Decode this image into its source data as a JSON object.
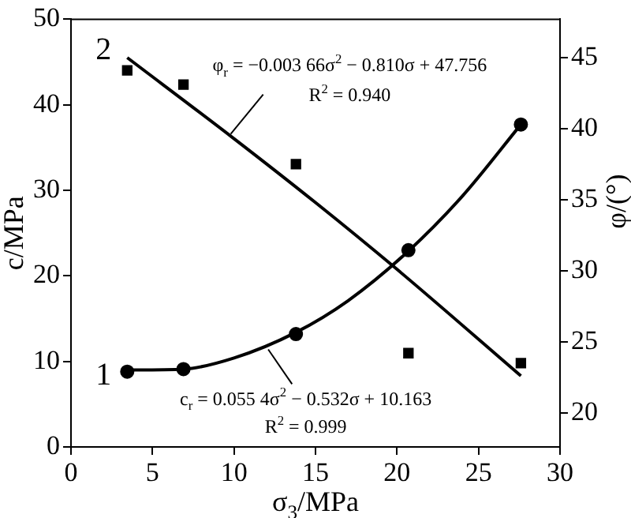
{
  "chart_data": {
    "type": "scatter",
    "xlabel": "σ$_{3}$/MPa",
    "ylabel": "c/MPa",
    "y2label": "φ/(°)",
    "xlim": [
      0,
      30
    ],
    "xticks": [
      0,
      5,
      10,
      15,
      20,
      25,
      30
    ],
    "ylim": [
      0,
      50
    ],
    "yticks": [
      0,
      10,
      20,
      30,
      40,
      50
    ],
    "y2lim": [
      17.6,
      47.7
    ],
    "y2ticks": [
      20,
      25,
      30,
      35,
      40,
      45
    ],
    "grid": false,
    "legend": false,
    "series": [
      {
        "type": "scatter",
        "marker": "circle",
        "color": "#000000",
        "x": [
          3.45,
          6.9,
          13.8,
          20.7,
          27.6
        ],
        "values": [
          8.8,
          9.1,
          13.2,
          23.0,
          37.7
        ]
      },
      {
        "name": "1",
        "type": "line",
        "marker": "none",
        "color": "#000000",
        "x": [
          3.45,
          6.9,
          10,
          13.8,
          17,
          20.7,
          24,
          27.6
        ],
        "values": [
          9.0,
          9.1,
          10.4,
          13.4,
          17.1,
          22.9,
          29.3,
          37.7
        ]
      },
      {
        "type": "scatter",
        "marker": "square",
        "axis": "y2",
        "color": "#000000",
        "x": [
          3.45,
          6.9,
          13.8,
          20.7,
          27.6
        ],
        "values": [
          44.1,
          43.1,
          37.5,
          24.2,
          23.5
        ]
      },
      {
        "name": "2",
        "type": "line",
        "marker": "none",
        "axis": "y2",
        "color": "#000000",
        "x": [
          3.45,
          10,
          15,
          20,
          27.6
        ],
        "values": [
          45.0,
          39.3,
          34.8,
          30.1,
          22.6
        ]
      }
    ],
    "annotations": [
      {
        "text": "φ$_{r}$ = −0.003 66σ$^{2}$ − 0.810σ + 47.756",
        "x": 9.8,
        "y": 36.6
      },
      "R$^{2}$ = 0.940",
      {
        "text": "c$_{r}$ = 0.055 4σ$^{2}$ − 0.532σ + 10.163",
        "x": 12.1,
        "y": 11.4
      },
      "R$^{2}$ = 0.999"
    ]
  }
}
